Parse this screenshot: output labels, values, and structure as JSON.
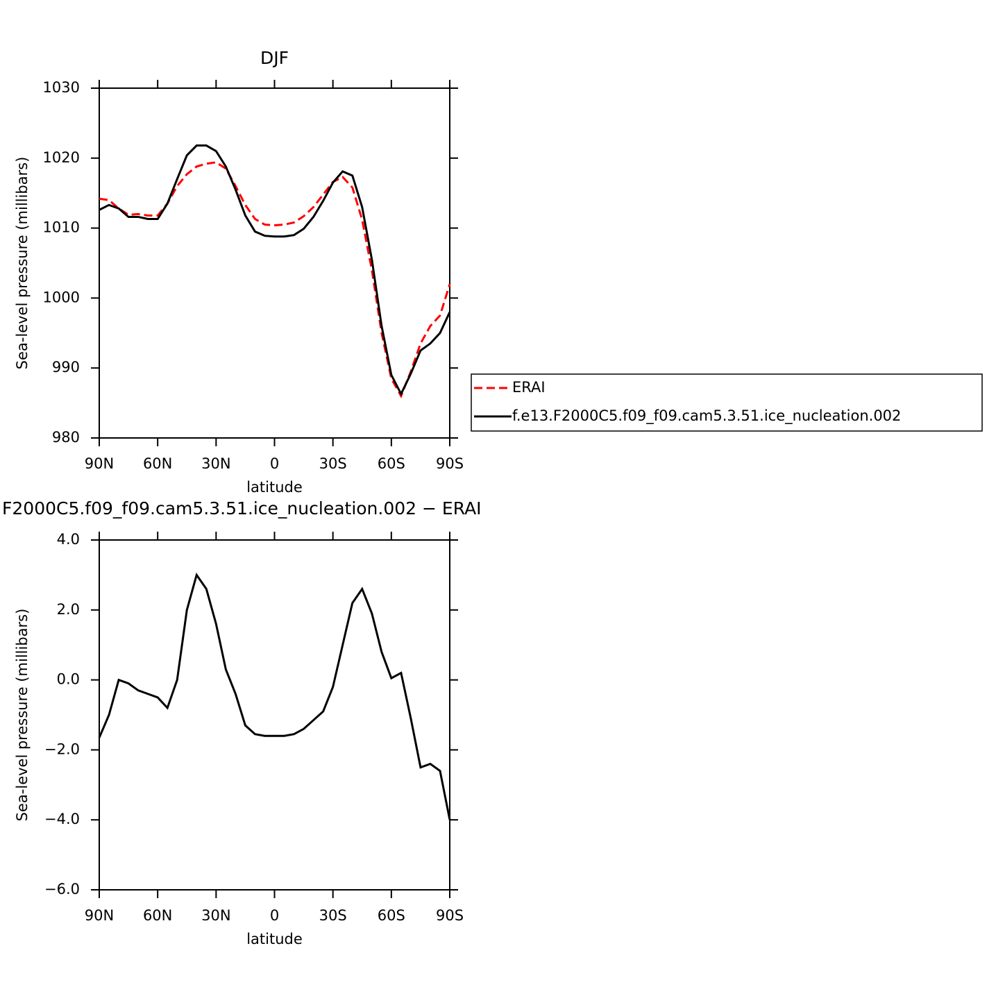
{
  "chart_data": [
    {
      "type": "line",
      "title": "DJF",
      "xlabel": "latitude",
      "ylabel": "Sea-level pressure (millibars)",
      "x": [
        90,
        85,
        80,
        75,
        70,
        65,
        60,
        55,
        50,
        45,
        40,
        35,
        30,
        25,
        20,
        15,
        10,
        5,
        0,
        -5,
        -10,
        -15,
        -20,
        -25,
        -30,
        -35,
        -40,
        -45,
        -50,
        -55,
        -60,
        -65,
        -70,
        -75,
        -80,
        -85,
        -90
      ],
      "series": [
        {
          "name": "ERAI",
          "color": "#ff0000",
          "dashed": true,
          "values": [
            1014.2,
            1014.0,
            1012.8,
            1011.9,
            1012.0,
            1011.8,
            1011.8,
            1013.5,
            1016.0,
            1017.7,
            1018.8,
            1019.2,
            1019.4,
            1018.5,
            1016.0,
            1013.3,
            1011.3,
            1010.5,
            1010.4,
            1010.5,
            1010.8,
            1011.7,
            1013.0,
            1014.8,
            1016.6,
            1017.3,
            1015.8,
            1011.2,
            1004.0,
            995.0,
            988.5,
            986.0,
            989.5,
            993.5,
            996.0,
            997.5,
            1002.0
          ]
        },
        {
          "name": "f.e13.F2000C5.f09_f09.cam5.3.51.ice_nucleation.002",
          "color": "#000000",
          "dashed": false,
          "values": [
            1012.6,
            1013.3,
            1012.8,
            1011.6,
            1011.6,
            1011.3,
            1011.3,
            1013.5,
            1017.0,
            1020.4,
            1021.8,
            1021.8,
            1021.0,
            1018.8,
            1015.5,
            1011.8,
            1009.5,
            1008.9,
            1008.8,
            1008.8,
            1009.0,
            1009.9,
            1011.6,
            1013.9,
            1016.5,
            1018.1,
            1017.5,
            1013.0,
            1005.5,
            996.0,
            989.0,
            986.3,
            989.2,
            992.5,
            993.5,
            995.0,
            998.0
          ]
        }
      ],
      "xlim": [
        90,
        -90
      ],
      "xticks": [
        {
          "value": 90,
          "label": "90N"
        },
        {
          "value": 60,
          "label": "60N"
        },
        {
          "value": 30,
          "label": "30N"
        },
        0,
        {
          "value": -30,
          "label": "30S"
        },
        {
          "value": -60,
          "label": "60S"
        },
        {
          "value": -90,
          "label": "90S"
        }
      ],
      "ylim": [
        980,
        1030
      ],
      "yticks": [
        980,
        990,
        1000,
        1010,
        1020,
        1030
      ],
      "legend": "right"
    },
    {
      "type": "line",
      "title": "F2000C5.f09_f09.cam5.3.51.ice_nucleation.002 − ERAI",
      "xlabel": "latitude",
      "ylabel": "Sea-level pressure (millibars)",
      "x": [
        90,
        85,
        80,
        75,
        70,
        65,
        60,
        55,
        50,
        45,
        40,
        35,
        30,
        25,
        20,
        15,
        10,
        5,
        0,
        -5,
        -10,
        -15,
        -20,
        -25,
        -30,
        -35,
        -40,
        -45,
        -50,
        -55,
        -60,
        -65,
        -70,
        -75,
        -80,
        -85,
        -90
      ],
      "series": [
        {
          "color": "#000000",
          "dashed": false,
          "values": [
            -1.65,
            -1.0,
            0.0,
            -0.1,
            -0.3,
            -0.4,
            -0.5,
            -0.8,
            0.0,
            2.0,
            3.0,
            2.6,
            1.6,
            0.3,
            -0.4,
            -1.3,
            -1.55,
            -1.6,
            -1.6,
            -1.6,
            -1.55,
            -1.4,
            -1.15,
            -0.9,
            -0.2,
            1.0,
            2.2,
            2.6,
            1.9,
            0.8,
            0.05,
            0.2,
            -1.1,
            -2.5,
            -2.4,
            -2.6,
            -4.0
          ]
        }
      ],
      "xlim": [
        90,
        -90
      ],
      "xticks": [
        {
          "value": 90,
          "label": "90N"
        },
        {
          "value": 60,
          "label": "60N"
        },
        {
          "value": 30,
          "label": "30N"
        },
        0,
        {
          "value": -30,
          "label": "30S"
        },
        {
          "value": -60,
          "label": "60S"
        },
        {
          "value": -90,
          "label": "90S"
        }
      ],
      "ylim": [
        -6,
        4
      ],
      "yticks": [
        {
          "value": -6,
          "label": "−6.0"
        },
        {
          "value": -4,
          "label": "−4.0"
        },
        {
          "value": -2,
          "label": "−2.0"
        },
        {
          "value": 0,
          "label": "0.0"
        },
        {
          "value": 2,
          "label": "2.0"
        },
        {
          "value": 4,
          "label": "4.0"
        }
      ]
    }
  ]
}
